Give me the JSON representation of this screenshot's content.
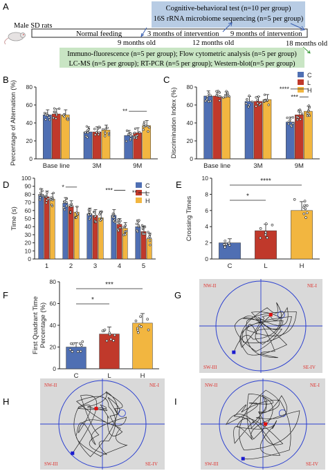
{
  "panels": {
    "A": "A",
    "B": "B",
    "C": "C",
    "D": "D",
    "E": "E",
    "F": "F",
    "G": "G",
    "H": "H",
    "I": "I"
  },
  "timeline": {
    "subject": "Male SD rats",
    "box_top_1": "Cognitive-behavioral test (n=10 per group)",
    "box_top_2": "16S rRNA microbiome sequencing (n=5 per group)",
    "phase1": "Normal feeding",
    "phase2": "3 months of intervention",
    "phase3": "9 months of intervention",
    "t1": "9 months old",
    "t2": "12 months old",
    "t3": "18 months old",
    "box_bottom_1": "Immuno-fluorescence (n=5 per group); Flow cytometric analysis (n=5 per group)",
    "box_bottom_2": "LC-MS (n=5 per group);  RT-PCR (n=5 per group); Western-blot(n=5 per group)"
  },
  "colors": {
    "C": "#4f6fb3",
    "L": "#c0392b",
    "H": "#f2b640",
    "box_blue": "#b8cce4",
    "box_green": "#c9e5c4",
    "maze_bg": "#d9d9d9",
    "maze_line": "#2a3fd0",
    "quadrant_text": "#e0302b"
  },
  "legend": [
    "C",
    "L",
    "H"
  ],
  "quadrants": {
    "nw": "NW-II",
    "ne": "NE-I",
    "sw": "SW-III",
    "se": "SE-IV"
  },
  "chart_data": [
    {
      "id": "B",
      "type": "bar",
      "ylabel": "Percentage of Alternation (%)",
      "categories": [
        "Base line",
        "3M",
        "9M"
      ],
      "series": [
        {
          "name": "C",
          "values": [
            49,
            30,
            26
          ]
        },
        {
          "name": "L",
          "values": [
            50,
            30,
            29
          ]
        },
        {
          "name": "H",
          "values": [
            49,
            32,
            37
          ]
        }
      ],
      "ylim": [
        0,
        80
      ],
      "yticks": [
        0,
        20,
        40,
        60,
        80
      ],
      "significance": [
        {
          "label": "**",
          "group": "9M",
          "from": "C",
          "to": "H"
        }
      ]
    },
    {
      "id": "C",
      "type": "bar",
      "ylabel": "Discrimination Index (%)",
      "categories": [
        "Base line",
        "3M",
        "9M"
      ],
      "series": [
        {
          "name": "C",
          "values": [
            70,
            64,
            41
          ]
        },
        {
          "name": "L",
          "values": [
            70,
            64,
            49
          ]
        },
        {
          "name": "H",
          "values": [
            69,
            66,
            53
          ]
        }
      ],
      "ylim": [
        0,
        80
      ],
      "yticks": [
        0,
        20,
        40,
        60,
        80
      ],
      "significance": [
        {
          "label": "***",
          "group": "9M",
          "from": "L",
          "to": "H"
        },
        {
          "label": "****",
          "group": "9M",
          "from": "C",
          "to": "H"
        }
      ]
    },
    {
      "id": "D",
      "type": "bar",
      "ylabel": "Time (s)",
      "categories": [
        "1",
        "2",
        "3",
        "4",
        "5"
      ],
      "series": [
        {
          "name": "C",
          "values": [
            80,
            69,
            56,
            54,
            40
          ]
        },
        {
          "name": "L",
          "values": [
            77,
            65,
            54,
            43,
            34
          ]
        },
        {
          "name": "H",
          "values": [
            74,
            58,
            51,
            38,
            25
          ]
        }
      ],
      "ylim": [
        0,
        100
      ],
      "yticks": [
        0,
        10,
        20,
        30,
        40,
        50,
        60,
        70,
        80,
        90,
        100
      ],
      "significance": [
        {
          "label": "*",
          "group": "2",
          "from": "C",
          "to": "H"
        },
        {
          "label": "***",
          "group": "4",
          "from": "C",
          "to": "H"
        },
        {
          "label": "**",
          "group": "5",
          "from": "C",
          "to": "H"
        }
      ]
    },
    {
      "id": "E",
      "type": "bar",
      "ylabel": "Crossing Times",
      "categories": [
        "C",
        "L",
        "H"
      ],
      "values": [
        2,
        3.5,
        6
      ],
      "ylim": [
        0,
        10
      ],
      "yticks": [
        0,
        2,
        4,
        6,
        8,
        10
      ],
      "significance": [
        {
          "label": "*",
          "from": "C",
          "to": "L"
        },
        {
          "label": "****",
          "from": "C",
          "to": "H"
        }
      ]
    },
    {
      "id": "F",
      "type": "bar",
      "ylabel": "First Quadrant Time Percentage (%)",
      "categories": [
        "C",
        "L",
        "H"
      ],
      "values": [
        20,
        32,
        42
      ],
      "ylim": [
        0,
        80
      ],
      "yticks": [
        0,
        20,
        40,
        60,
        80
      ],
      "significance": [
        {
          "label": "*",
          "from": "C",
          "to": "L"
        },
        {
          "label": "***",
          "from": "C",
          "to": "H"
        }
      ]
    }
  ]
}
